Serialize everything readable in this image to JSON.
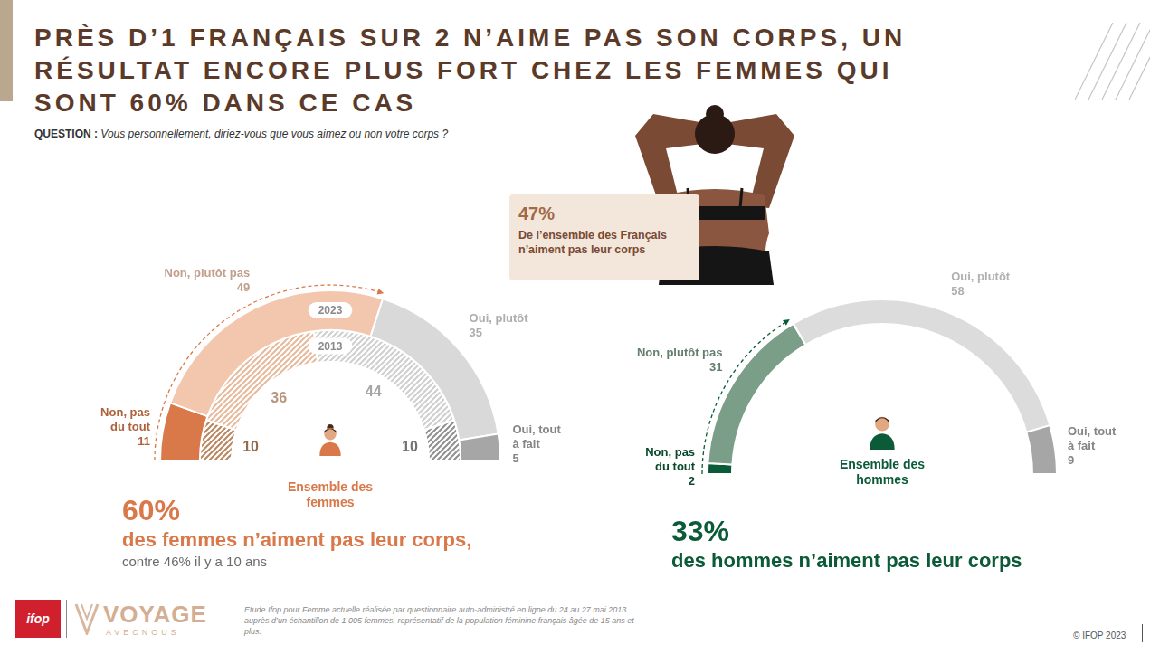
{
  "title": [
    "PRÈS D’1 FRANÇAIS SUR 2 N’AIME PAS SON CORPS, UN",
    "RÉSULTAT ENCORE PLUS FORT CHEZ LES FEMMES QUI",
    "SONT 60% DANS CE CAS"
  ],
  "question": {
    "label": "QUESTION :",
    "text": "Vous personnellement, diriez-vous que vous aimez ou non votre corps ?"
  },
  "highlight": {
    "value": "47%",
    "text": "De l’ensemble des Français n’aiment pas leur corps"
  },
  "chart_data": [
    {
      "type": "doughnut",
      "center_label": "Ensemble des femmes",
      "categories": [
        "Non, pas du tout",
        "Non, plutôt pas",
        "Oui, plutôt",
        "Oui, tout à fait"
      ],
      "series": [
        {
          "name": "2023",
          "colors": [
            "#d9794a",
            "#f3c7ae",
            "#d9d9d9",
            "#a6a6a6"
          ],
          "values": [
            11,
            49,
            35,
            5
          ]
        },
        {
          "name": "2013",
          "colors": [
            "#b9865f",
            "#e6b99b",
            "#cfcfcf",
            "#8f8f8f"
          ],
          "values": [
            10,
            36,
            44,
            10
          ]
        }
      ],
      "data_labels": true
    },
    {
      "type": "doughnut",
      "center_label": "Ensemble des hommes",
      "categories": [
        "Non, pas du tout",
        "Non, plutôt pas",
        "Oui, plutôt",
        "Oui, tout à fait"
      ],
      "series": [
        {
          "colors": [
            "#0b5a38",
            "#7b9e88",
            "#dcdcdc",
            "#a6a6a6"
          ],
          "values": [
            2,
            31,
            58,
            9
          ]
        }
      ],
      "data_labels": true
    }
  ],
  "callouts": [
    {
      "value": "60%",
      "text": "des femmes n’aiment pas leur corps,",
      "note": "contre 46% il y a 10 ans"
    },
    {
      "value": "33%",
      "text": "des hommes n’aiment pas leur corps"
    }
  ],
  "footer": {
    "logos": [
      "ifop",
      "VOYAGE",
      "AVECNOUS"
    ],
    "source": "Etude Ifop pour Femme actuelle réalisée par questionnaire auto-administré en ligne du 24 au 27 mai 2013 auprès d’un échantillon de 1 005 femmes, représentatif de la population féminine français âgée de 15 ans et plus.",
    "copyright": "© IFOP 2023"
  }
}
